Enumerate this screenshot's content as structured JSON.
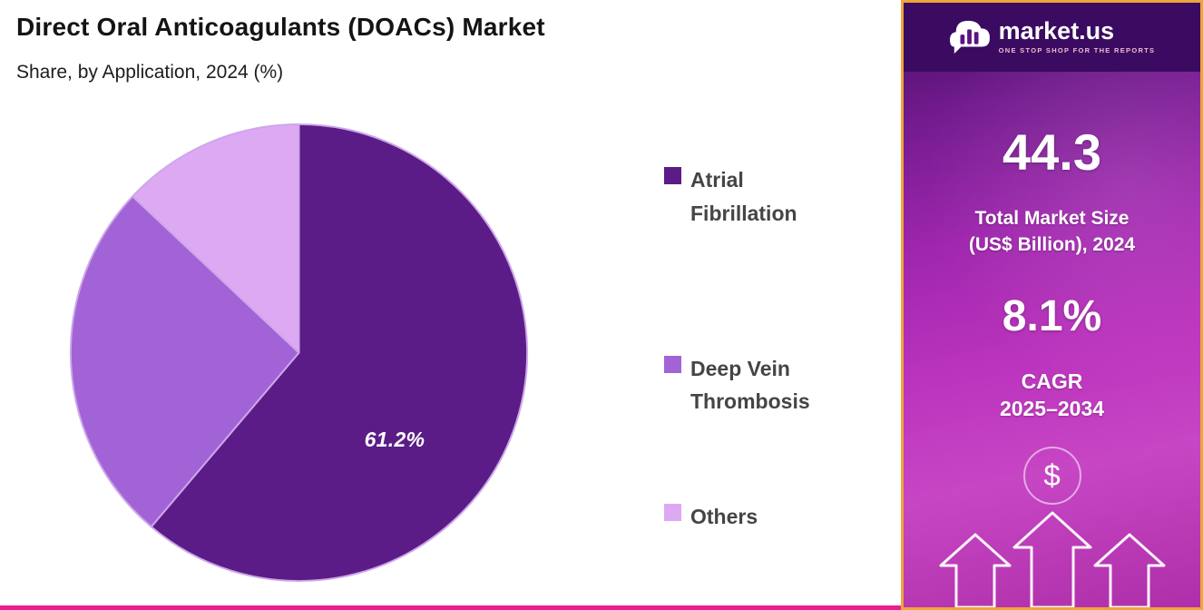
{
  "chart_data": {
    "type": "pie",
    "title": "Direct Oral Anticoagulants (DOACs) Market",
    "subtitle": "Share, by Application, 2024 (%)",
    "legend_position": "right",
    "start_angle_deg": 90,
    "direction": "clockwise",
    "stroke_color": "#CDA6EA",
    "slices": [
      {
        "label": "Atrial Fibrillation",
        "value": 61.2,
        "color": "#5B1C87",
        "data_label": "61.2%"
      },
      {
        "label": "Deep Vein Thrombosis",
        "value": 25.8,
        "color": "#A263D6",
        "data_label": ""
      },
      {
        "label": "Others",
        "value": 13.0,
        "color": "#DDA9F2",
        "data_label": ""
      }
    ]
  },
  "sidebar": {
    "logo": {
      "brand": "market.us",
      "tagline": "ONE STOP SHOP FOR THE REPORTS"
    },
    "stat1": {
      "value": "44.3",
      "label_line1": "Total Market Size",
      "label_line2": "(US$ Billion), 2024"
    },
    "stat2": {
      "value": "8.1%",
      "label_line1": "CAGR",
      "label_line2": "2025–2034"
    },
    "currency_symbol": "$",
    "border_color": "#EFA43C"
  },
  "footer": {
    "accent_bar_color": "#E81F8C"
  }
}
